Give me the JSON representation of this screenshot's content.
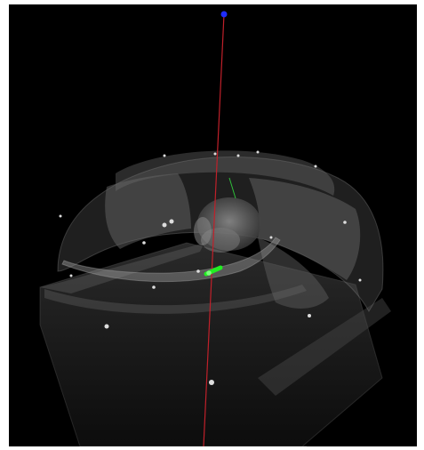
{
  "viewer": {
    "background": "#000000",
    "render_mode": "volume",
    "colors": {
      "z_axis": "#c0202a",
      "y_axis": "#2fbf3a",
      "endpoint": "#1f2cff",
      "marker": "#22ee22",
      "volume": "#8a8a8a"
    }
  }
}
